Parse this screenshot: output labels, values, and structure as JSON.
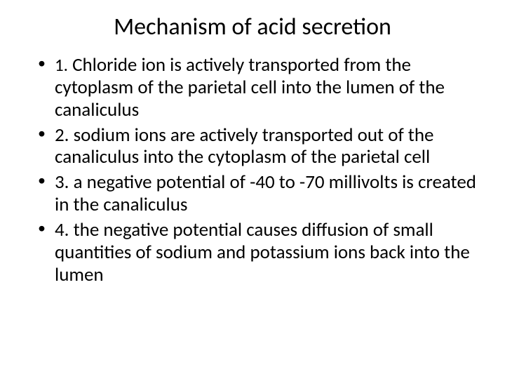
{
  "title": "Mechanism of acid secretion",
  "bullets": {
    "item1_num": "1.",
    "item1_text": " Chloride ion is actively transported from the cytoplasm of the parietal cell into the lumen of the canaliculus",
    "item2": "2. sodium ions are actively transported out of the canaliculus into the cytoplasm of the parietal cell",
    "item3": "3. a negative potential of -40 to -70 millivolts is created in the canaliculus",
    "item4": "4. the negative potential causes diffusion of small quantities of sodium and potassium ions back into the lumen"
  },
  "colors": {
    "background": "#ffffff",
    "text": "#000000"
  },
  "fontsizes": {
    "title": 34,
    "body": 27
  }
}
